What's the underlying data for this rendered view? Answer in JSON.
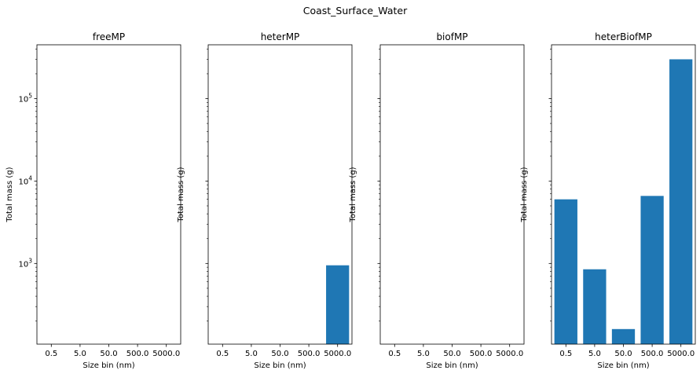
{
  "figure": {
    "title": "Coast_Surface_Water"
  },
  "chart_data": [
    {
      "type": "bar",
      "title": "freeMP",
      "xlabel": "Size bin (nm)",
      "ylabel": "Total mass (g)",
      "categories": [
        "0.5",
        "5.0",
        "50.0",
        "500.0",
        "5000.0"
      ],
      "values": [
        null,
        null,
        null,
        null,
        null
      ],
      "yscale": "log",
      "ylim": [
        105,
        450000
      ],
      "yticks": [
        {
          "value": 1000,
          "base": "10",
          "exp": "3"
        },
        {
          "value": 10000,
          "base": "10",
          "exp": "4"
        },
        {
          "value": 100000,
          "base": "10",
          "exp": "5"
        }
      ],
      "show_ytick_labels": true,
      "color": "#1f77b4",
      "grid": false
    },
    {
      "type": "bar",
      "title": "heterMP",
      "xlabel": "Size bin (nm)",
      "ylabel": "Total mass (g)",
      "categories": [
        "0.5",
        "5.0",
        "50.0",
        "500.0",
        "5000.0"
      ],
      "values": [
        null,
        null,
        null,
        null,
        950
      ],
      "yscale": "log",
      "ylim": [
        105,
        450000
      ],
      "yticks": [
        {
          "value": 1000,
          "base": "10",
          "exp": "3"
        },
        {
          "value": 10000,
          "base": "10",
          "exp": "4"
        },
        {
          "value": 100000,
          "base": "10",
          "exp": "5"
        }
      ],
      "show_ytick_labels": false,
      "color": "#1f77b4",
      "grid": false
    },
    {
      "type": "bar",
      "title": "biofMP",
      "xlabel": "Size bin (nm)",
      "ylabel": "Total mass (g)",
      "categories": [
        "0.5",
        "5.0",
        "50.0",
        "500.0",
        "5000.0"
      ],
      "values": [
        null,
        null,
        null,
        null,
        null
      ],
      "yscale": "log",
      "ylim": [
        105,
        450000
      ],
      "yticks": [
        {
          "value": 1000,
          "base": "10",
          "exp": "3"
        },
        {
          "value": 10000,
          "base": "10",
          "exp": "4"
        },
        {
          "value": 100000,
          "base": "10",
          "exp": "5"
        }
      ],
      "show_ytick_labels": false,
      "color": "#1f77b4",
      "grid": false
    },
    {
      "type": "bar",
      "title": "heterBiofMP",
      "xlabel": "Size bin (nm)",
      "ylabel": "Total mass (g)",
      "categories": [
        "0.5",
        "5.0",
        "50.0",
        "500.0",
        "5000.0"
      ],
      "values": [
        6000,
        850,
        160,
        6600,
        300000
      ],
      "yscale": "log",
      "ylim": [
        105,
        450000
      ],
      "yticks": [
        {
          "value": 1000,
          "base": "10",
          "exp": "3"
        },
        {
          "value": 10000,
          "base": "10",
          "exp": "4"
        },
        {
          "value": 100000,
          "base": "10",
          "exp": "5"
        }
      ],
      "show_ytick_labels": false,
      "color": "#1f77b4",
      "grid": false
    }
  ]
}
